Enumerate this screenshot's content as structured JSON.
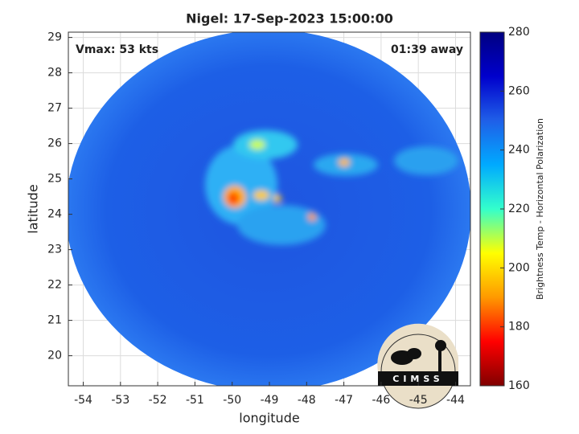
{
  "chart_data": {
    "type": "image",
    "title": "Nigel: 17-Sep-2023 15:00:00",
    "annotations": [
      "Vmax: 53 kts",
      "01:39 away"
    ],
    "xlabel": "longitude",
    "ylabel": "latitude",
    "xlim": [
      -54.4,
      -43.6
    ],
    "xticks": [
      -54,
      -53,
      -52,
      -51,
      -50,
      -49,
      -48,
      -47,
      -46,
      -45,
      -44
    ],
    "ylim": [
      19.15,
      29.15
    ],
    "yticks": [
      20,
      21,
      22,
      23,
      24,
      25,
      26,
      27,
      28,
      29
    ],
    "grid": true,
    "colorbar": {
      "label": "Brightness Temp - Horizontal Polarization",
      "clim": [
        160,
        280
      ],
      "ticks": [
        160,
        180,
        200,
        220,
        240,
        260,
        280
      ],
      "colormap": [
        "#800000",
        "#ff0000",
        "#ff9900",
        "#ffff00",
        "#33ffcc",
        "#00aaff",
        "#1f5fe8",
        "#0000cc",
        "#000080"
      ]
    },
    "watermark": "CIMSS"
  }
}
